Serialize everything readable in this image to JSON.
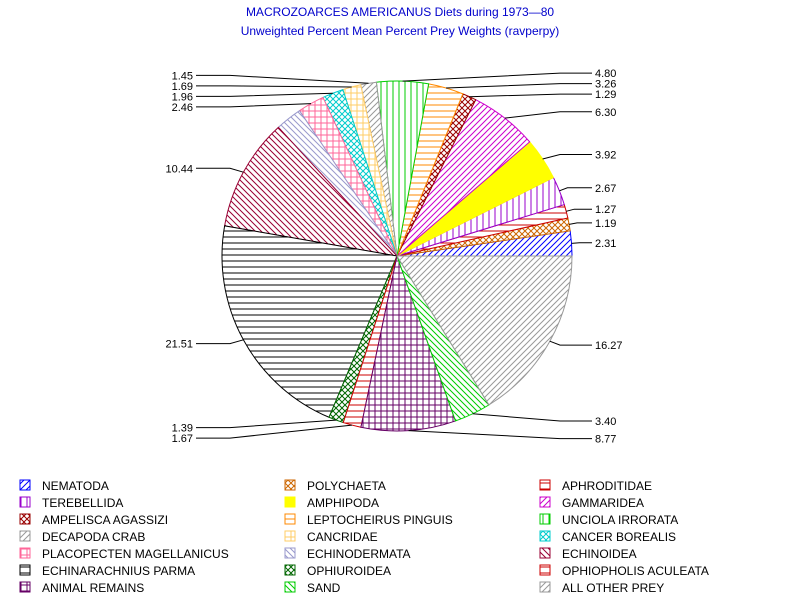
{
  "chart_data": {
    "type": "pie",
    "title": "MACROZOARCES AMERICANUS Diets during 1973—80",
    "subtitle": "Unweighted Percent Mean Percent Prey  Weights (ravperpy)",
    "slices": [
      {
        "name": "NEMATODA",
        "value": 2.31,
        "label": "2.31",
        "color": "#0000ff",
        "pattern": "diag-up"
      },
      {
        "name": "POLYCHAETA",
        "value": 1.19,
        "label": "1.19",
        "color": "#cc6600",
        "pattern": "cross-diag"
      },
      {
        "name": "APHRODITIDAE",
        "value": 1.27,
        "label": "1.27",
        "color": "#cc0000",
        "pattern": "horiz"
      },
      {
        "name": "TEREBELLIDA",
        "value": 2.67,
        "label": "2.67",
        "color": "#9900cc",
        "pattern": "vert"
      },
      {
        "name": "AMPHIPODA",
        "value": 3.92,
        "label": "3.92",
        "color": "#ffff00",
        "pattern": "solid"
      },
      {
        "name": "GAMMARIDEA",
        "value": 6.3,
        "label": "6.30",
        "color": "#cc00cc",
        "pattern": "diag-up"
      },
      {
        "name": "AMPELISCA AGASSIZI",
        "value": 1.29,
        "label": "1.29",
        "color": "#990000",
        "pattern": "cross-diag"
      },
      {
        "name": "LEPTOCHEIRUS PINGUIS",
        "value": 3.26,
        "label": "3.26",
        "color": "#ff8800",
        "pattern": "horiz"
      },
      {
        "name": "UNCIOLA IRRORATA",
        "value": 4.8,
        "label": "4.80",
        "color": "#00cc00",
        "pattern": "vert"
      },
      {
        "name": "DECAPODA CRAB",
        "value": 1.45,
        "label": "1.45",
        "color": "#999999",
        "pattern": "diag-up"
      },
      {
        "name": "CANCRIDAE",
        "value": 1.69,
        "label": "1.69",
        "color": "#ffcc66",
        "pattern": "grid"
      },
      {
        "name": "CANCER BOREALIS",
        "value": 1.96,
        "label": "1.96",
        "color": "#00cccc",
        "pattern": "cross-diag"
      },
      {
        "name": "PLACOPECTEN MAGELLANICUS",
        "value": 2.46,
        "label": "2.46",
        "color": "#ff6699",
        "pattern": "grid"
      },
      {
        "name": "ECHINODERMATA",
        "value": 2.46,
        "label": "",
        "color": "#9999cc",
        "pattern": "diag-down"
      },
      {
        "name": "ECHINOIDEA",
        "value": 10.44,
        "label": "10.44",
        "color": "#990033",
        "pattern": "diag-down"
      },
      {
        "name": "ECHINARACHNIUS PARMA",
        "value": 21.51,
        "label": "21.51",
        "color": "#000000",
        "pattern": "horiz"
      },
      {
        "name": "OPHIUROIDEA",
        "value": 1.39,
        "label": "1.39",
        "color": "#006600",
        "pattern": "cross-diag"
      },
      {
        "name": "OPHIOPHOLIS ACULEATA",
        "value": 1.67,
        "label": "1.67",
        "color": "#cc0000",
        "pattern": "horiz"
      },
      {
        "name": "ANIMAL REMAINS",
        "value": 8.77,
        "label": "8.77",
        "color": "#660066",
        "pattern": "grid"
      },
      {
        "name": "SAND",
        "value": 3.4,
        "label": "3.40",
        "color": "#00cc00",
        "pattern": "diag-down"
      },
      {
        "name": "ALL OTHER PREY",
        "value": 16.27,
        "label": "16.27",
        "color": "#999999",
        "pattern": "diag-up"
      }
    ],
    "legend_placement": "bottom"
  }
}
